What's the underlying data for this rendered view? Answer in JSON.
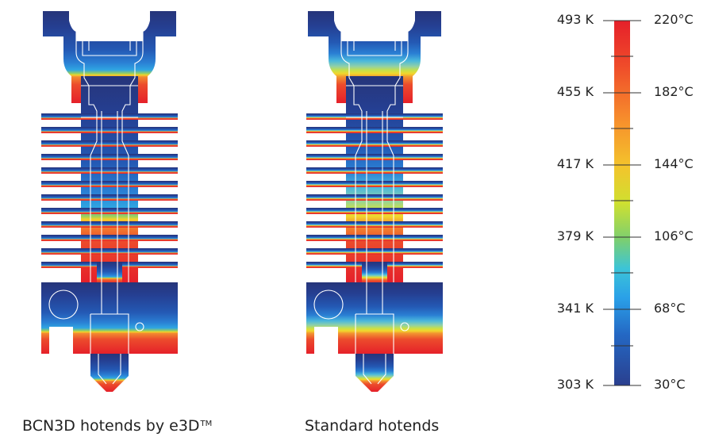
{
  "hotends": [
    {
      "caption": "BCN3D hotends by e3D",
      "trademark": "TM",
      "cold_zone": "blue",
      "transition": "narrow band at heat break",
      "hot_zone": "heater block and nozzle"
    },
    {
      "caption": "Standard hotends",
      "trademark": "",
      "cold_zone": "blue",
      "transition": "heat creeps up into heatsink fins",
      "hot_zone": "heater block and nozzle"
    }
  ],
  "scale": {
    "kelvin": [
      "493 K",
      "455 K",
      "417 K",
      "379 K",
      "341 K",
      "303 K"
    ],
    "celsius": [
      "220°C",
      "182°C",
      "144°C",
      "106°C",
      "68°C",
      "30°C"
    ],
    "colors": [
      "#e5202a",
      "#f0562a",
      "#f7912c",
      "#f3c12c",
      "#d8e02c",
      "#8fd35a",
      "#3cc0d8",
      "#2aa0e8",
      "#2468c4",
      "#28449a"
    ]
  }
}
